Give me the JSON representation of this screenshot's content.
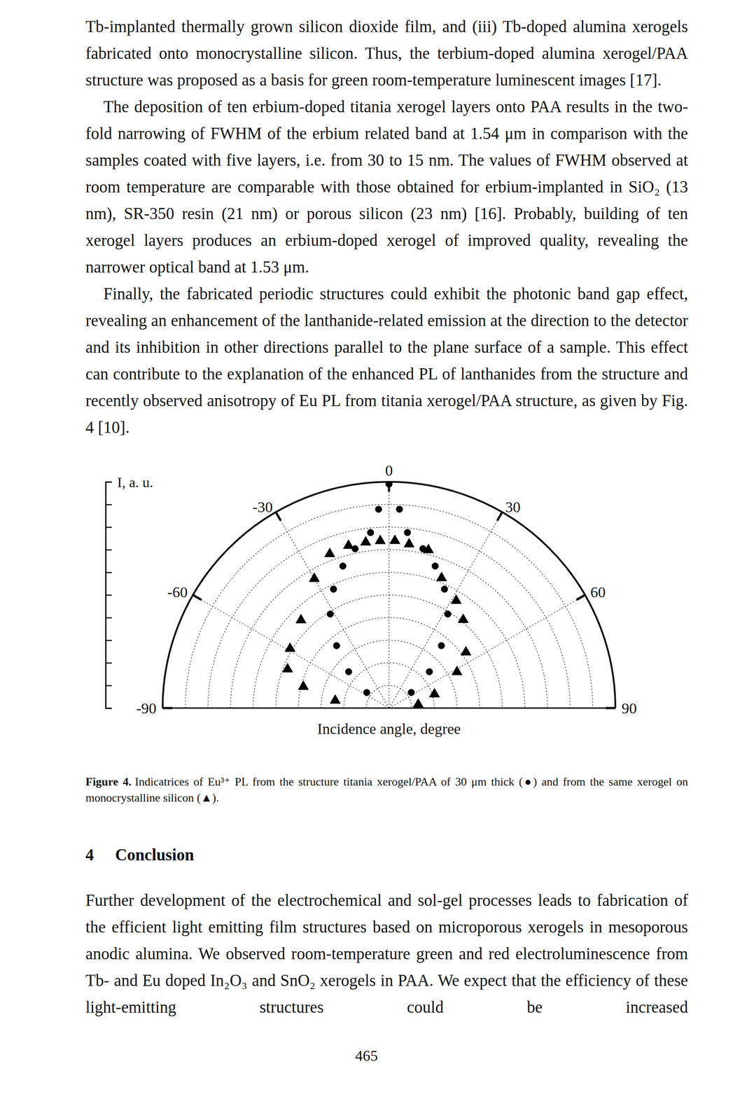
{
  "paragraphs": [
    "Tb-implanted thermally grown silicon dioxide film, and (iii) Tb-doped alumina xerogels fabricated onto monocrystalline silicon. Thus, the terbium-doped alumina xerogel/PAA structure was proposed as a basis for green room-temperature luminescent images [17].",
    "The deposition of ten erbium-doped titania xerogel layers onto PAA results in the two-fold narrowing of FWHM of the erbium related band at 1.54 μm in comparison with the samples coated with five layers, i.e. from 30 to 15 nm. The values of FWHM observed at room temperature are comparable with those obtained for erbium-implanted in SiO₂ (13 nm), SR-350 resin (21 nm) or porous silicon (23 nm) [16]. Probably, building of ten xerogel layers produces an erbium-doped xerogel of improved quality, revealing the narrower optical band at 1.53 μm.",
    "Finally, the fabricated periodic structures could exhibit the photonic band gap effect, revealing an enhancement of the lanthanide-related emission at the direction to the detector and its inhibition in other directions parallel to the plane surface of a sample. This effect can contribute to the explanation of the enhanced PL of lanthanides from the structure and recently observed anisotropy of Eu PL from titania xerogel/PAA structure, as given by Fig. 4 [10]."
  ],
  "chart_data": {
    "type": "polar",
    "xlabel": "Incidence angle, degree",
    "ylabel": "I, a. u.",
    "xlim": [
      -90,
      90
    ],
    "xticks": [
      -90,
      -60,
      -30,
      0,
      30,
      60,
      90
    ],
    "ylim": [
      0,
      10
    ],
    "yticks": [
      0,
      1,
      2,
      3,
      4,
      5,
      6,
      7,
      8,
      9,
      10
    ],
    "tick_labels": "x",
    "grid": true,
    "series": [
      {
        "color": "#000000",
        "marker": "circle",
        "x": [
          -55,
          -48,
          -40,
          -32,
          -25,
          -18,
          -12,
          -6,
          -3,
          0,
          3,
          6,
          12,
          18,
          25,
          32,
          40,
          48,
          55
        ],
        "values": [
          1.2,
          2.4,
          3.6,
          4.9,
          5.8,
          6.6,
          7.2,
          7.8,
          8.8,
          9.9,
          8.8,
          7.8,
          7.2,
          6.6,
          5.8,
          4.9,
          3.6,
          2.4,
          1.2
        ]
      },
      {
        "color": "#000000",
        "marker": "triangle",
        "x": [
          -82,
          -76,
          -69,
          -59,
          -45,
          -30,
          -21,
          -14,
          -8,
          -3,
          2,
          7,
          14,
          22,
          32,
          40,
          54,
          62,
          73,
          83
        ],
        "values": [
          2.4,
          3.9,
          4.8,
          5.1,
          5.5,
          6.6,
          7.3,
          7.4,
          7.4,
          7.4,
          7.4,
          7.3,
          7.2,
          6.2,
          5.6,
          5.1,
          4.2,
          3.4,
          2.1,
          1.3
        ]
      }
    ]
  },
  "caption": {
    "label": "Figure 4.",
    "text": "Indicatrices of Eu³⁺ PL from the structure titania xerogel/PAA of 30 μm thick (●) and from the same xerogel on monocrystalline silicon (▲)."
  },
  "section": {
    "number": "4",
    "title": "Conclusion",
    "text": "Further development of the electrochemical and sol-gel processes leads to fabrication of the efficient light emitting film structures based on microporous xerogels in mesoporous anodic alumina. We observed room-temperature green and red electroluminescence from Tb- and Eu doped In₂O₃ and SnO₂ xerogels in PAA. We expect that the efficiency of these light-emitting structures could be increased"
  },
  "page_number": "465"
}
